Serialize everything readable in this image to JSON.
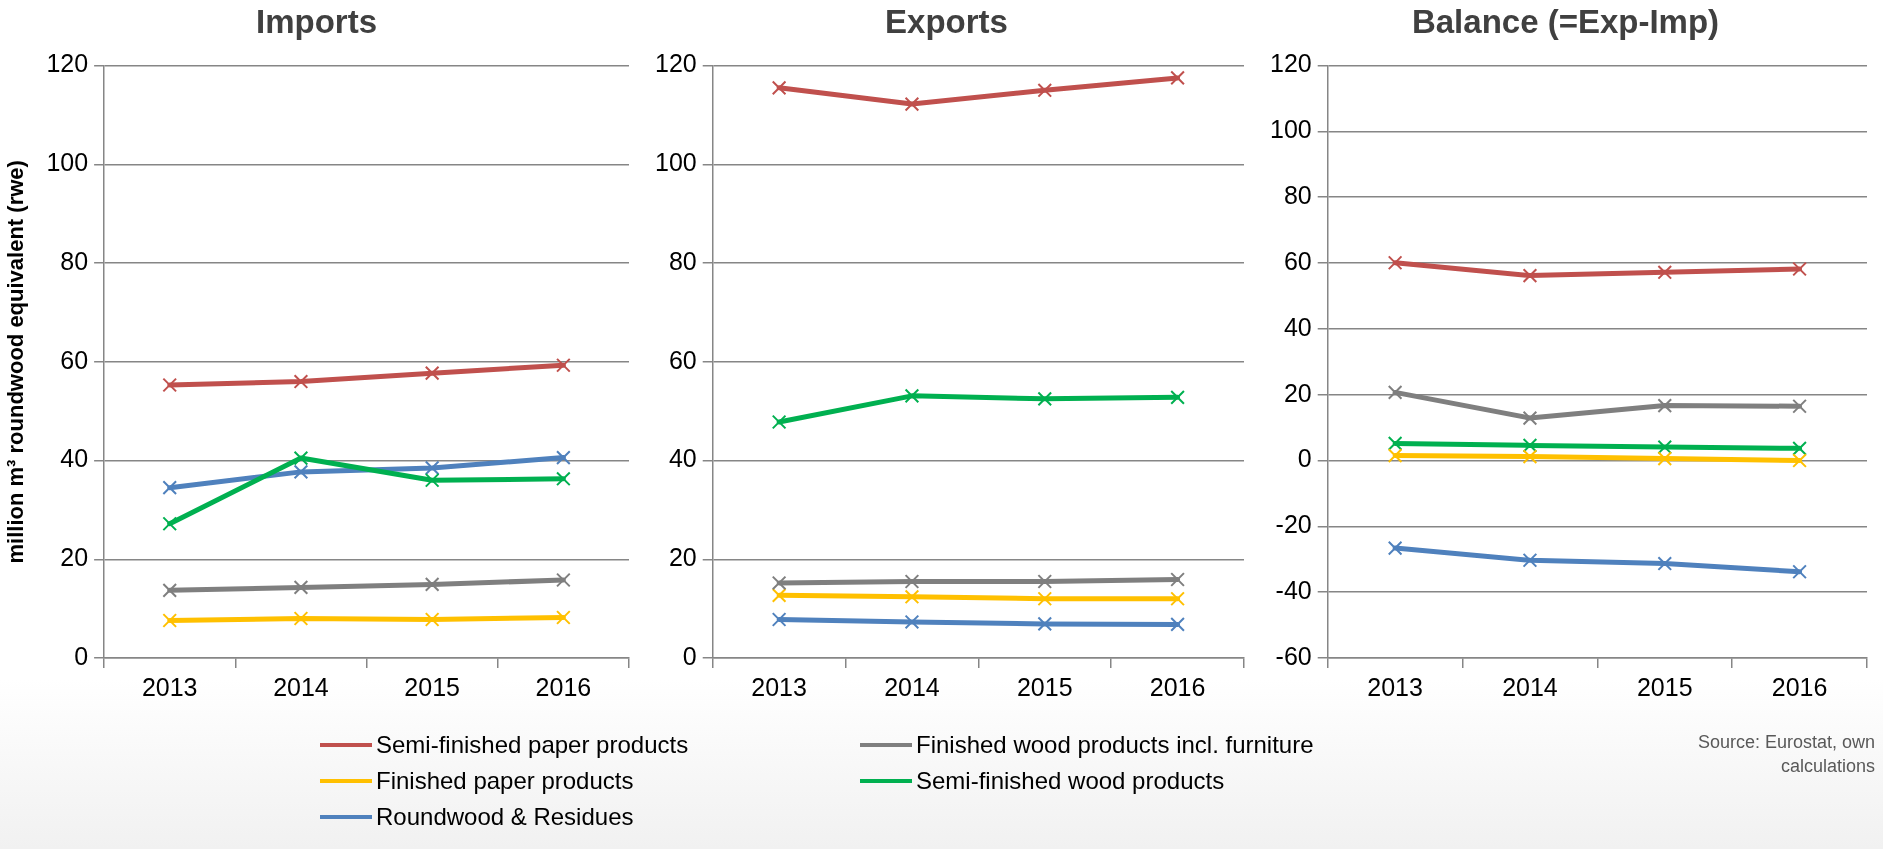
{
  "chart_data": [
    {
      "type": "line",
      "title": "Imports",
      "ylabel": "million m³ roundwood equivalent (rwe)",
      "categories": [
        "2013",
        "2014",
        "2015",
        "2016"
      ],
      "ylim": [
        0,
        120
      ],
      "yticks": [
        0,
        20,
        40,
        60,
        80,
        100,
        120
      ],
      "grid": "y",
      "legend": "bottom",
      "marker": "cross",
      "line_style": "solid",
      "series": [
        {
          "name": "Semi-finished paper products",
          "color": "#c0504d",
          "values": [
            55.3,
            56.0,
            57.7,
            59.3
          ]
        },
        {
          "name": "Finished wood products incl. furniture",
          "color": "#7f7f7f",
          "values": [
            13.7,
            14.3,
            14.9,
            15.8
          ]
        },
        {
          "name": "Finished paper products",
          "color": "#ffc000",
          "values": [
            7.6,
            8.0,
            7.8,
            8.2
          ]
        },
        {
          "name": "Semi-finished wood products",
          "color": "#00b050",
          "values": [
            27.2,
            40.5,
            36.0,
            36.3
          ]
        },
        {
          "name": "Roundwood & Residues",
          "color": "#4f81bd",
          "values": [
            34.5,
            37.7,
            38.5,
            40.6
          ]
        }
      ]
    },
    {
      "type": "line",
      "title": "Exports",
      "categories": [
        "2013",
        "2014",
        "2015",
        "2016"
      ],
      "ylim": [
        0,
        120
      ],
      "yticks": [
        0,
        20,
        40,
        60,
        80,
        100,
        120
      ],
      "grid": "y",
      "marker": "cross",
      "line_style": "solid",
      "series": [
        {
          "color": "#c0504d",
          "values": [
            115.5,
            112.2,
            115.0,
            117.5
          ]
        },
        {
          "color": "#7f7f7f",
          "values": [
            15.2,
            15.5,
            15.5,
            15.9
          ]
        },
        {
          "color": "#ffc000",
          "values": [
            12.7,
            12.4,
            12.0,
            12.0
          ]
        },
        {
          "color": "#00b050",
          "values": [
            47.8,
            53.1,
            52.5,
            52.8
          ]
        },
        {
          "color": "#4f81bd",
          "values": [
            7.8,
            7.3,
            6.9,
            6.8
          ]
        }
      ]
    },
    {
      "type": "line",
      "title": "Balance (=Exp-Imp)",
      "categories": [
        "2013",
        "2014",
        "2015",
        "2016"
      ],
      "ylim": [
        -60,
        120
      ],
      "yticks": [
        -60,
        -40,
        -20,
        0,
        20,
        40,
        60,
        80,
        100,
        120
      ],
      "grid": "y",
      "marker": "cross",
      "line_style": "solid",
      "annotations": [
        "Source: Eurostat, own calculations"
      ],
      "series": [
        {
          "color": "#c0504d",
          "values": [
            60.1,
            56.2,
            57.2,
            58.2
          ]
        },
        {
          "color": "#7f7f7f",
          "values": [
            20.7,
            12.9,
            16.7,
            16.5
          ]
        },
        {
          "color": "#ffc000",
          "values": [
            1.5,
            1.2,
            0.6,
            0.0
          ]
        },
        {
          "color": "#00b050",
          "values": [
            5.2,
            4.6,
            4.1,
            3.7
          ]
        },
        {
          "color": "#4f81bd",
          "values": [
            -26.6,
            -30.3,
            -31.3,
            -33.8
          ]
        }
      ]
    }
  ]
}
